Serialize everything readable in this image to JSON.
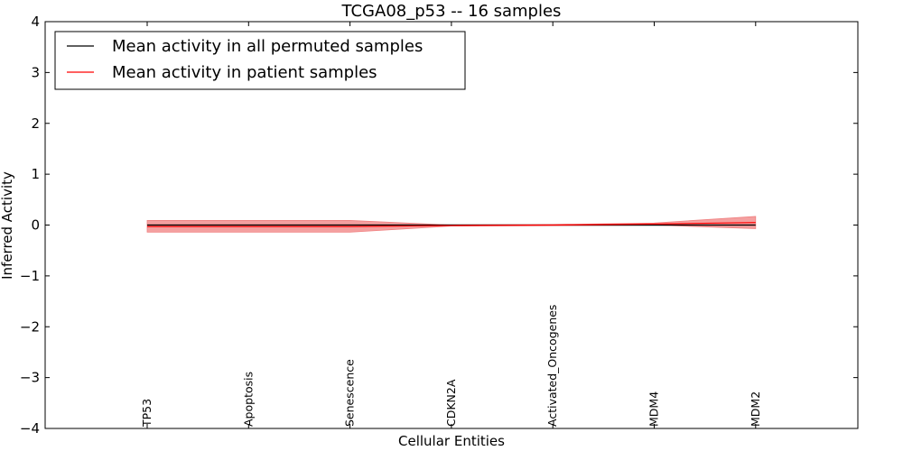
{
  "chart_data": {
    "type": "line",
    "title": "TCGA08_p53 -- 16 samples",
    "xlabel": "Cellular Entities",
    "ylabel": "Inferred Activity",
    "ylim": [
      -4,
      4
    ],
    "yticks": [
      4,
      3,
      2,
      1,
      0,
      -1,
      -2,
      -3,
      -4
    ],
    "ytick_labels": [
      "4",
      "3",
      "2",
      "1",
      "0",
      "−1",
      "−2",
      "−3",
      "−4"
    ],
    "categories": [
      "TP53",
      "Apoptosis",
      "Senescence",
      "CDKN2A",
      "Activated_Oncogenes",
      "MDM4",
      "MDM2"
    ],
    "grid": false,
    "legend_position": "top-left",
    "series": [
      {
        "name": "Mean activity in all permuted samples",
        "color": "#000000",
        "values": [
          0.0,
          0.0,
          0.0,
          0.0,
          0.0,
          0.0,
          0.0
        ],
        "band_low": [
          -0.01,
          -0.01,
          -0.01,
          -0.01,
          -0.01,
          -0.01,
          -0.01
        ],
        "band_high": [
          0.01,
          0.01,
          0.01,
          0.01,
          0.01,
          0.01,
          0.01
        ],
        "band_color": "#bfbfbf"
      },
      {
        "name": "Mean activity in patient samples",
        "color": "#ff0000",
        "values": [
          -0.03,
          -0.03,
          -0.03,
          -0.01,
          0.0,
          0.02,
          0.05
        ],
        "band_low": [
          -0.14,
          -0.14,
          -0.14,
          -0.02,
          -0.01,
          0.0,
          -0.07
        ],
        "band_high": [
          0.09,
          0.09,
          0.09,
          0.0,
          0.01,
          0.04,
          0.17
        ],
        "band_color": "#f08080"
      }
    ]
  }
}
